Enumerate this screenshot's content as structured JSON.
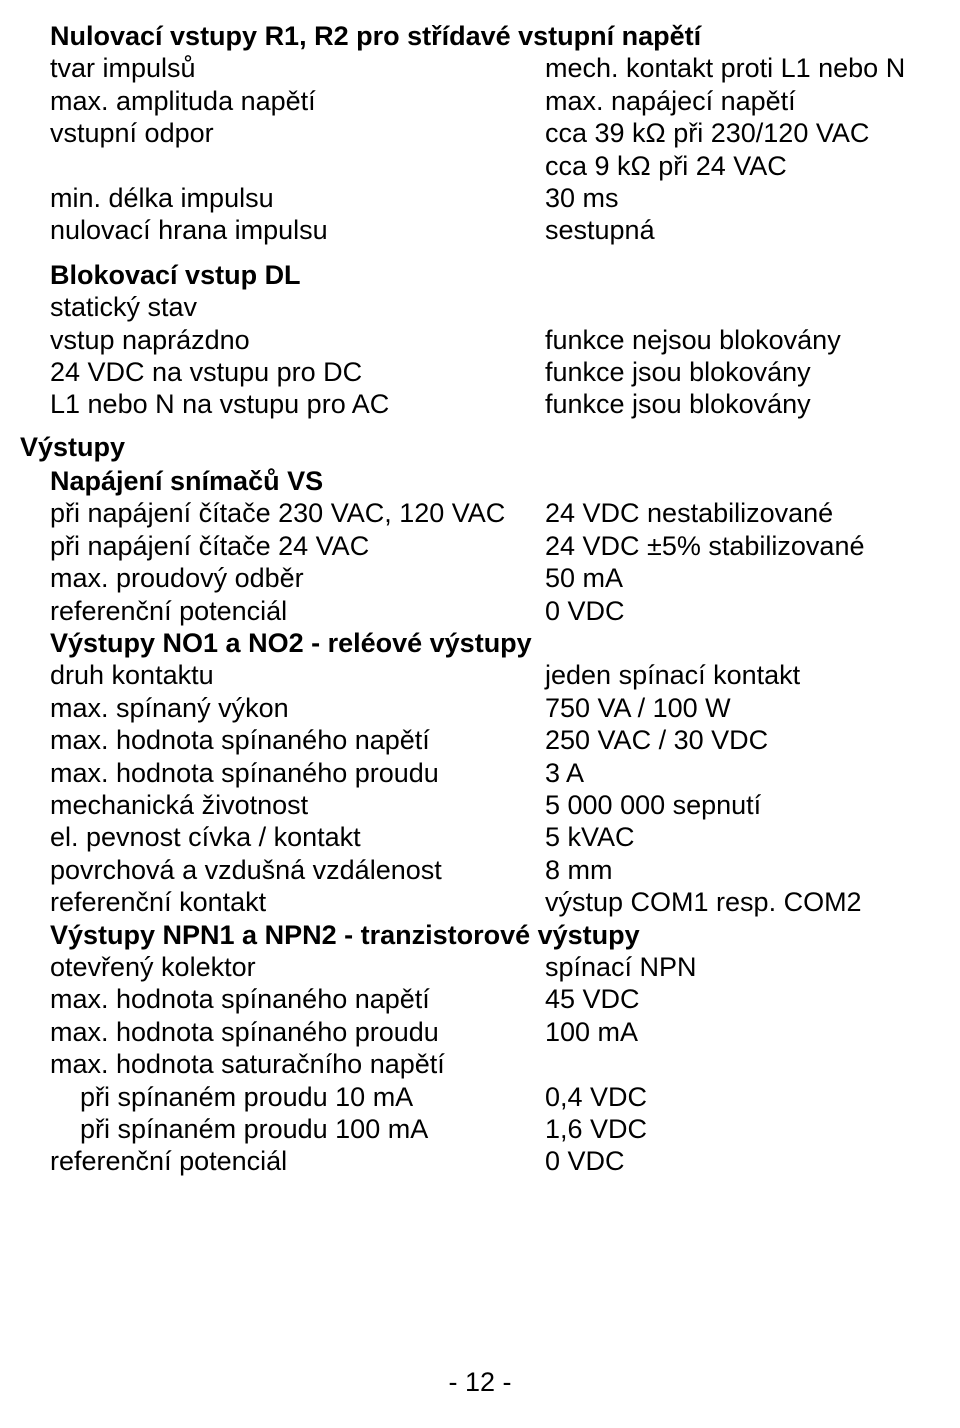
{
  "s1": {
    "title": "Nulovací vstupy R1, R2 pro střídavé vstupní napětí",
    "rows": [
      {
        "l": "tvar impulsů",
        "r": "mech. kontakt proti L1 nebo N"
      },
      {
        "l": "max. amplituda napětí",
        "r": "max. napájecí napětí"
      },
      {
        "l": "vstupní odpor",
        "r": "cca 39 kΩ při 230/120 VAC"
      },
      {
        "l": "",
        "r": "cca 9 kΩ při 24 VAC"
      },
      {
        "l": "min. délka impulsu",
        "r": "30 ms"
      },
      {
        "l": "nulovací hrana impulsu",
        "r": "sestupná"
      }
    ]
  },
  "s2": {
    "title": "Blokovací vstup DL",
    "rows": [
      {
        "l": "statický stav",
        "r": ""
      },
      {
        "l": "vstup naprázdno",
        "r": "funkce nejsou blokovány"
      },
      {
        "l": "24 VDC na vstupu pro DC",
        "r": "funkce jsou blokovány"
      },
      {
        "l": "L1 nebo N na vstupu pro AC",
        "r": "funkce jsou blokovány"
      }
    ]
  },
  "major": "Výstupy",
  "s3": {
    "title": "Napájení snímačů VS",
    "rows": [
      {
        "l": "při napájení čítače 230 VAC, 120 VAC",
        "r": "24 VDC nestabilizované"
      },
      {
        "l": "při napájení čítače 24 VAC",
        "r": "24 VDC ±5% stabilizované"
      },
      {
        "l": "max. proudový odběr",
        "r": "50 mA"
      },
      {
        "l": "referenční potenciál",
        "r": "0 VDC"
      }
    ]
  },
  "s4": {
    "title": "Výstupy NO1 a NO2 - reléové výstupy",
    "rows": [
      {
        "l": "druh kontaktu",
        "r": "jeden spínací kontakt"
      },
      {
        "l": "max. spínaný výkon",
        "r": "750 VA / 100 W"
      },
      {
        "l": "max. hodnota spínaného napětí",
        "r": "250 VAC / 30 VDC"
      },
      {
        "l": "max. hodnota spínaného proudu",
        "r": "3 A"
      },
      {
        "l": "mechanická životnost",
        "r": "5 000 000 sepnutí"
      },
      {
        "l": "el. pevnost cívka / kontakt",
        "r": "5 kVAC"
      },
      {
        "l": "povrchová a vzdušná vzdálenost",
        "r": "8 mm"
      },
      {
        "l": "referenční kontakt",
        "r": "výstup COM1 resp. COM2"
      }
    ]
  },
  "s5": {
    "title": "Výstupy NPN1 a NPN2 - tranzistorové výstupy",
    "rows": [
      {
        "l": "otevřený kolektor",
        "r": "spínací NPN"
      },
      {
        "l": "max. hodnota spínaného napětí",
        "r": "45 VDC"
      },
      {
        "l": "max. hodnota spínaného proudu",
        "r": "100 mA"
      },
      {
        "l": "max. hodnota saturačního napětí",
        "r": ""
      }
    ],
    "indented": [
      {
        "l": "při spínaném proudu 10 mA",
        "r": "0,4 VDC"
      },
      {
        "l": "při spínaném proudu 100 mA",
        "r": "1,6 VDC"
      }
    ],
    "last": {
      "l": "referenční potenciál",
      "r": "0 VDC"
    }
  },
  "footer": "- 12 -"
}
